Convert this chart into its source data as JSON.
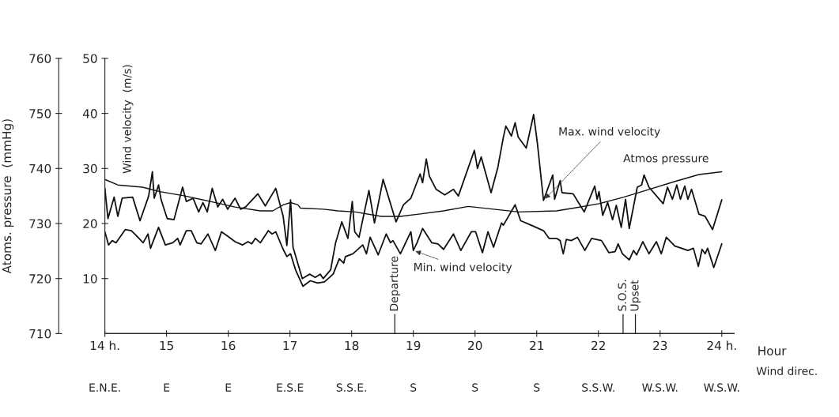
{
  "chart_data": {
    "type": "line",
    "xlabel": "Hour",
    "ylabel": "Atoms. pressure  (mmHg)",
    "y2label": "Wind velocity  (m/s)",
    "xlim": [
      14,
      24.2
    ],
    "xticks": [
      {
        "value": 14,
        "label": "14 h."
      },
      15,
      16,
      17,
      18,
      19,
      20,
      21,
      22,
      23,
      {
        "value": 24,
        "label": "24 h."
      }
    ],
    "ylim": [
      710,
      760
    ],
    "yticks": [
      710,
      720,
      730,
      740,
      750,
      760
    ],
    "y2lim": [
      0,
      50
    ],
    "y2ticks": [
      10,
      20,
      30,
      40,
      50
    ],
    "grid": false,
    "legend": false,
    "marker": "none",
    "line_style": "solid",
    "series": [
      {
        "name": "Max. wind velocity",
        "color": "#111111",
        "axis": "y2",
        "x": [
          14.0,
          14.05,
          14.15,
          14.21,
          14.28,
          14.45,
          14.57,
          14.71,
          14.77,
          14.8,
          14.87,
          14.91,
          15.01,
          15.12,
          15.26,
          15.32,
          15.43,
          15.52,
          15.59,
          15.66,
          15.74,
          15.83,
          15.91,
          15.99,
          16.11,
          16.2,
          16.28,
          16.48,
          16.6,
          16.77,
          16.89,
          16.95,
          17.01,
          17.05,
          17.2,
          17.32,
          17.41,
          17.49,
          17.54,
          17.66,
          17.74,
          17.84,
          17.94,
          18.01,
          18.05,
          18.12,
          18.28,
          18.37,
          18.51,
          18.72,
          18.84,
          18.96,
          19.11,
          19.15,
          19.21,
          19.26,
          19.37,
          19.51,
          19.65,
          19.73,
          19.99,
          20.04,
          20.1,
          20.26,
          20.37,
          20.46,
          20.5,
          20.59,
          20.65,
          20.7,
          20.83,
          20.95,
          21.01,
          21.11,
          21.26,
          21.29,
          21.38,
          21.41,
          21.59,
          21.77,
          21.94,
          21.98,
          22.01,
          22.07,
          22.15,
          22.23,
          22.29,
          22.37,
          22.44,
          22.5,
          22.63,
          22.7,
          22.74,
          22.82,
          23.05,
          23.12,
          23.2,
          23.27,
          23.33,
          23.4,
          23.45,
          23.51,
          23.63,
          23.73,
          23.85,
          24.0
        ],
        "values": [
          26.4,
          20.9,
          24.8,
          21.3,
          24.6,
          24.8,
          20.5,
          25,
          29.4,
          24.6,
          27,
          24.4,
          20.9,
          20.7,
          26.6,
          24,
          24.6,
          22.1,
          23.8,
          22.1,
          26.4,
          23,
          24.4,
          22.6,
          24.6,
          22.6,
          23,
          25.4,
          23.2,
          26.4,
          21.3,
          16,
          24.3,
          15.7,
          10,
          10.8,
          10.2,
          10.8,
          10,
          11.6,
          16.5,
          20.3,
          17.3,
          24,
          18.5,
          17.5,
          26,
          20.1,
          28,
          20.3,
          23.4,
          24.6,
          29,
          27.4,
          31.7,
          28.6,
          26.2,
          25.2,
          26.2,
          25,
          33.3,
          30,
          32.1,
          25.6,
          30.2,
          35.7,
          37.7,
          35.9,
          38.3,
          35.7,
          33.7,
          39.8,
          34.7,
          24.2,
          28.8,
          24.4,
          27.8,
          25.6,
          25.4,
          22.1,
          26.8,
          24.4,
          25.8,
          21.5,
          23.8,
          20.7,
          23.3,
          19.3,
          24.4,
          19.1,
          26.6,
          27,
          28.8,
          26.6,
          23.6,
          26.6,
          24.4,
          27,
          24.4,
          26.8,
          24.4,
          26.2,
          21.7,
          21.3,
          18.9,
          24.3
        ]
      },
      {
        "name": "Min. wind velocity",
        "color": "#111111",
        "axis": "y2",
        "x": [
          14.0,
          14.06,
          14.12,
          14.18,
          14.33,
          14.43,
          14.52,
          14.62,
          14.7,
          14.74,
          14.87,
          14.98,
          15.1,
          15.18,
          15.22,
          15.32,
          15.4,
          15.49,
          15.56,
          15.67,
          15.79,
          15.89,
          15.99,
          16.11,
          16.23,
          16.32,
          16.38,
          16.44,
          16.52,
          16.65,
          16.71,
          16.77,
          16.89,
          16.95,
          17.01,
          17.09,
          17.21,
          17.33,
          17.45,
          17.56,
          17.7,
          17.8,
          17.87,
          17.9,
          18.02,
          18.18,
          18.24,
          18.3,
          18.43,
          18.56,
          18.63,
          18.67,
          18.79,
          18.96,
          19.0,
          19.06,
          19.15,
          19.3,
          19.4,
          19.49,
          19.65,
          19.77,
          19.94,
          20.01,
          20.12,
          20.21,
          20.3,
          20.43,
          20.46,
          20.65,
          20.74,
          20.91,
          21.11,
          21.2,
          21.32,
          21.38,
          21.43,
          21.48,
          21.56,
          21.66,
          21.78,
          21.89,
          22.05,
          22.17,
          22.27,
          22.32,
          22.39,
          22.5,
          22.57,
          22.62,
          22.72,
          22.82,
          22.94,
          23.02,
          23.1,
          23.24,
          23.35,
          23.45,
          23.54,
          23.62,
          23.68,
          23.73,
          23.77,
          23.87,
          24.0
        ],
        "values": [
          18.5,
          16.1,
          16.9,
          16.5,
          18.9,
          18.7,
          17.7,
          16.5,
          18.1,
          15.5,
          19.3,
          16.1,
          16.5,
          17.3,
          16.1,
          18.7,
          18.7,
          16.5,
          16.3,
          18.1,
          15.1,
          18.5,
          17.7,
          16.7,
          16.1,
          16.7,
          16.3,
          17.3,
          16.5,
          18.7,
          18.1,
          18.5,
          15.3,
          14,
          14.5,
          11.6,
          8.6,
          9.6,
          9.2,
          9.4,
          10.8,
          13.6,
          12.8,
          14,
          14.5,
          16.1,
          14.5,
          17.5,
          14.3,
          18.1,
          16.5,
          16.9,
          14.5,
          18.5,
          15.1,
          16.5,
          19.1,
          16.5,
          16.3,
          15.3,
          18.1,
          15.1,
          18.5,
          18.5,
          14.7,
          18.5,
          15.7,
          20.1,
          19.7,
          23.4,
          20.5,
          19.7,
          18.7,
          17.3,
          17.3,
          16.9,
          14.5,
          17.1,
          16.9,
          17.5,
          15.1,
          17.3,
          16.9,
          14.7,
          14.9,
          16.3,
          14.5,
          13.4,
          15.1,
          14.3,
          16.7,
          14.5,
          16.7,
          14.5,
          17.5,
          15.9,
          15.5,
          15.1,
          15.5,
          12.2,
          15.3,
          14.5,
          15.5,
          12,
          16.3
        ]
      },
      {
        "name": "Atmos pressure",
        "color": "#111111",
        "axis": "y",
        "x": [
          14.0,
          14.21,
          14.61,
          14.89,
          15.3,
          15.71,
          16.11,
          16.52,
          16.72,
          16.89,
          17.01,
          17.13,
          17.17,
          17.54,
          17.78,
          18.06,
          18.48,
          18.79,
          19.09,
          19.49,
          19.89,
          20.3,
          20.71,
          21.32,
          21.6,
          22.01,
          22.41,
          22.82,
          23.23,
          23.63,
          24.0
        ],
        "values": [
          738,
          737,
          736.6,
          735.8,
          735,
          734,
          733,
          732.3,
          732.3,
          733.4,
          733.8,
          733.4,
          732.8,
          732.6,
          732.3,
          732.1,
          731.3,
          731.3,
          731.7,
          732.3,
          733.1,
          732.6,
          732.1,
          732.3,
          732.8,
          733.6,
          734.8,
          736.2,
          737.6,
          738.9,
          739.4
        ]
      }
    ],
    "ref_lines": [
      {
        "axis": "x",
        "value": 18.7,
        "label": "Departure"
      },
      {
        "axis": "x",
        "value": 22.4,
        "label": "S.O.S."
      },
      {
        "axis": "x",
        "value": 22.6,
        "label": "Upset"
      }
    ],
    "annotations": [
      "E.N.E.",
      "E",
      "E",
      "E.S.E",
      "S.S.E.",
      "S",
      "S",
      "S",
      "S.S.W.",
      "W.S.W.",
      "W.S.W.",
      "Wind direc."
    ]
  }
}
